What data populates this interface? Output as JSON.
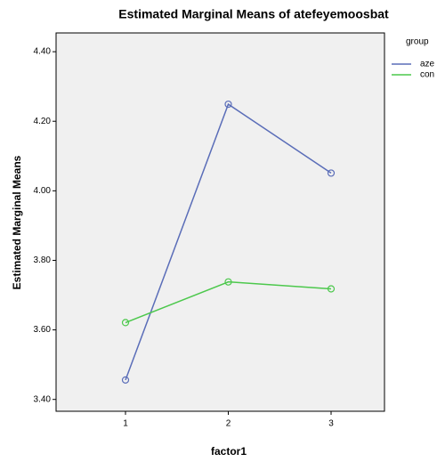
{
  "chart_data": {
    "type": "line",
    "title": "Estimated Marginal Means of atefeyemoosbat",
    "x_label": "factor1",
    "y_label": "Estimated Marginal Means",
    "categories": [
      "1",
      "2",
      "3"
    ],
    "legend_title": "group",
    "series": [
      {
        "name": "aze",
        "color": "#5a6db8",
        "values": [
          3.456,
          4.249,
          4.051
        ]
      },
      {
        "name": "con",
        "color": "#4cc84c",
        "values": [
          3.621,
          3.738,
          3.718
        ]
      }
    ],
    "ylim": [
      3.366,
      4.454
    ],
    "yticks": [
      {
        "value": 3.4,
        "label": "3.40"
      },
      {
        "value": 3.6,
        "label": "3.60"
      },
      {
        "value": 3.8,
        "label": "3.80"
      },
      {
        "value": 4.0,
        "label": "4.00"
      },
      {
        "value": 4.2,
        "label": "4.20"
      },
      {
        "value": 4.4,
        "label": "4.40"
      }
    ],
    "legend": "right"
  }
}
